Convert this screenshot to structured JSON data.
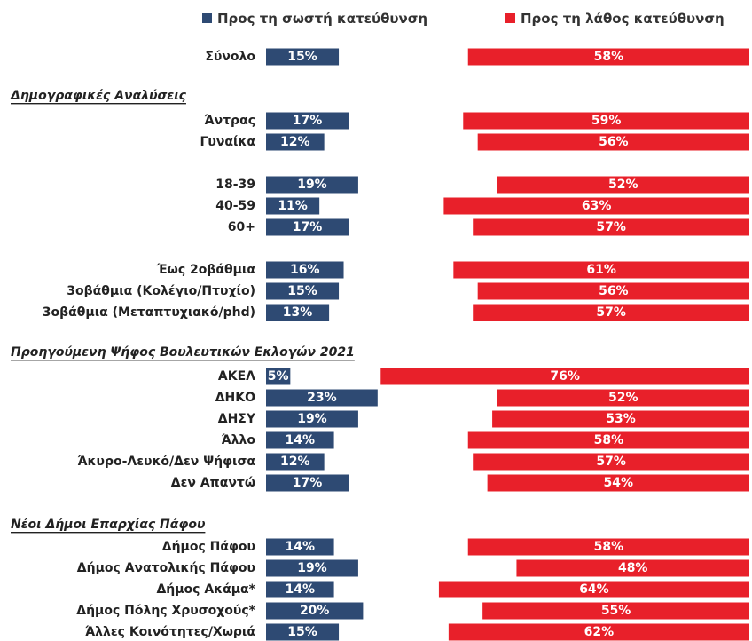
{
  "chart_data": {
    "type": "bar",
    "categories": [
      "Σύνολο",
      "Άντρας",
      "Γυναίκα",
      "18-39",
      "40-59",
      "60+",
      "Έως 2οβάθμια",
      "3οβάθμια (Κολέγιο/Πτυχίο)",
      "3οβάθμια (Μεταπτυχιακό/phd)",
      "ΑΚΕΛ",
      "ΔΗΚΟ",
      "ΔΗΣΥ",
      "Άλλο",
      "Άκυρο-Λευκό/Δεν Ψήφισα",
      "Δεν Απαντώ",
      "Δήμος Πάφου",
      "Δήμος Ανατολικής Πάφου",
      "Δήμος Ακάμα*",
      "Δήμος Πόλης Χρυσοχούς*",
      "Άλλες Κοινότητες/Χωριά"
    ],
    "section_titles": [
      "Δημογραφικές Αναλύσεις",
      "Προηγούμενη Ψήφος Βουλευτικών Εκλογών 2021",
      "Νέοι Δήμοι Επαρχίας Πάφου"
    ],
    "series": [
      {
        "name": "Προς τη σωστή κατεύθυνση",
        "color": "#2e4a73",
        "values": [
          15,
          17,
          12,
          19,
          11,
          17,
          16,
          15,
          13,
          5,
          23,
          19,
          14,
          12,
          17,
          14,
          19,
          14,
          20,
          15
        ],
        "value_labels": [
          "15%",
          "17%",
          "12%",
          "19%",
          "11%",
          "17%",
          "16%",
          "15%",
          "13%",
          "5%",
          "23%",
          "19%",
          "14%",
          "12%",
          "17%",
          "14%",
          "19%",
          "14%",
          "20%",
          "15%"
        ]
      },
      {
        "name": "Προς τη λάθος κατεύθυνση",
        "color": "#e8202a",
        "values": [
          58,
          59,
          56,
          52,
          63,
          57,
          61,
          56,
          57,
          76,
          52,
          53,
          58,
          57,
          54,
          58,
          48,
          64,
          55,
          62
        ],
        "value_labels": [
          "58%",
          "59%",
          "56%",
          "52%",
          "63%",
          "57%",
          "61%",
          "56%",
          "57%",
          "76%",
          "52%",
          "53%",
          "58%",
          "57%",
          "54%",
          "58%",
          "48%",
          "64%",
          "55%",
          "62%"
        ]
      }
    ]
  }
}
